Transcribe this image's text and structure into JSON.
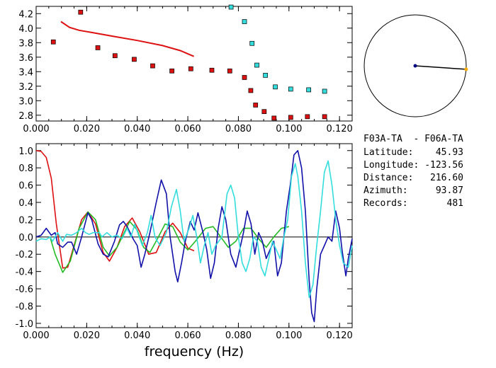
{
  "info": {
    "station_pair": "F03A-TA  - F06A-TA",
    "rows": [
      {
        "label": "Latitude:",
        "value": "45.93"
      },
      {
        "label": "Longitude:",
        "value": "-123.56"
      },
      {
        "label": "Distance:",
        "value": "216.60"
      },
      {
        "label": "Azimuth:",
        "value": "93.87"
      },
      {
        "label": "Records:",
        "value": "481"
      }
    ]
  },
  "colors": {
    "red": "#dd1111",
    "cyan": "#33dddd",
    "blue": "#1111aa",
    "green": "#22bb22",
    "orange": "#ffaa00",
    "navy": "#000080"
  },
  "chart_data": [
    {
      "type": "scatter",
      "xlim": [
        0.0,
        0.125
      ],
      "ylim": [
        2.72,
        4.3
      ],
      "xticks": [
        "0.000",
        "0.020",
        "0.040",
        "0.060",
        "0.080",
        "0.100",
        "0.120"
      ],
      "yticks": [
        "2.8",
        "3.0",
        "3.2",
        "3.4",
        "3.6",
        "3.8",
        "4.0",
        "4.2"
      ],
      "series": [
        {
          "color": "red",
          "kind": "points",
          "points": [
            [
              0.0068,
              3.81
            ],
            [
              0.0176,
              4.22
            ],
            [
              0.0244,
              3.73
            ],
            [
              0.0312,
              3.62
            ],
            [
              0.0388,
              3.57
            ],
            [
              0.0461,
              3.48
            ],
            [
              0.0537,
              3.41
            ],
            [
              0.0612,
              3.44
            ],
            [
              0.0695,
              3.42
            ],
            [
              0.0766,
              3.41
            ],
            [
              0.0824,
              3.32
            ],
            [
              0.0849,
              3.14
            ],
            [
              0.0868,
              2.94
            ],
            [
              0.0902,
              2.85
            ],
            [
              0.0941,
              2.76
            ],
            [
              0.1007,
              2.77
            ],
            [
              0.1073,
              2.78
            ],
            [
              0.1141,
              2.78
            ]
          ]
        },
        {
          "color": "cyan",
          "kind": "points",
          "points": [
            [
              0.0771,
              4.29
            ],
            [
              0.0824,
              4.09
            ],
            [
              0.0854,
              3.79
            ],
            [
              0.0873,
              3.49
            ],
            [
              0.0907,
              3.35
            ],
            [
              0.0946,
              3.19
            ],
            [
              0.1007,
              3.16
            ],
            [
              0.1078,
              3.15
            ],
            [
              0.1141,
              3.13
            ]
          ]
        },
        {
          "color": "red",
          "kind": "line",
          "points": [
            [
              0.0098,
              4.09
            ],
            [
              0.0132,
              4.01
            ],
            [
              0.017,
              3.97
            ],
            [
              0.022,
              3.94
            ],
            [
              0.03,
              3.89
            ],
            [
              0.04,
              3.83
            ],
            [
              0.05,
              3.76
            ],
            [
              0.057,
              3.69
            ],
            [
              0.0624,
              3.61
            ]
          ]
        }
      ]
    },
    {
      "type": "line",
      "xlabel": "frequency (Hz)",
      "xlim": [
        0.0,
        0.125
      ],
      "ylim": [
        -1.05,
        1.08
      ],
      "xticks": [
        "0.000",
        "0.020",
        "0.040",
        "0.060",
        "0.080",
        "0.100",
        "0.120"
      ],
      "yticks": [
        "1.0",
        "0.8",
        "0.6",
        "0.4",
        "0.2",
        "0.0",
        "-0.2",
        "-0.4",
        "-0.6",
        "-0.8",
        "-1.0"
      ],
      "series": [
        {
          "color": "red",
          "points": [
            [
              0.0,
              1.0
            ],
            [
              0.002,
              0.99
            ],
            [
              0.004,
              0.92
            ],
            [
              0.006,
              0.68
            ],
            [
              0.008,
              0.15
            ],
            [
              0.0105,
              -0.36
            ],
            [
              0.0125,
              -0.35
            ],
            [
              0.015,
              -0.1
            ],
            [
              0.018,
              0.2
            ],
            [
              0.0205,
              0.29
            ],
            [
              0.0235,
              0.15
            ],
            [
              0.0265,
              -0.18
            ],
            [
              0.029,
              -0.28
            ],
            [
              0.032,
              -0.12
            ],
            [
              0.035,
              0.12
            ],
            [
              0.038,
              0.22
            ],
            [
              0.041,
              0.06
            ],
            [
              0.0445,
              -0.2
            ],
            [
              0.0475,
              -0.18
            ],
            [
              0.051,
              0.06
            ],
            [
              0.054,
              0.16
            ],
            [
              0.057,
              0.05
            ],
            [
              0.06,
              -0.13
            ],
            [
              0.0625,
              -0.16
            ]
          ]
        },
        {
          "color": "green",
          "points": [
            [
              0.0055,
              0.0
            ],
            [
              0.0075,
              -0.2
            ],
            [
              0.0105,
              -0.41
            ],
            [
              0.0135,
              -0.28
            ],
            [
              0.017,
              0.1
            ],
            [
              0.0205,
              0.29
            ],
            [
              0.0235,
              0.2
            ],
            [
              0.0265,
              -0.12
            ],
            [
              0.029,
              -0.22
            ],
            [
              0.032,
              -0.12
            ],
            [
              0.035,
              0.06
            ],
            [
              0.037,
              0.18
            ],
            [
              0.04,
              0.08
            ],
            [
              0.0425,
              -0.12
            ],
            [
              0.045,
              -0.18
            ],
            [
              0.048,
              -0.02
            ],
            [
              0.051,
              0.15
            ],
            [
              0.054,
              0.12
            ],
            [
              0.057,
              -0.06
            ],
            [
              0.06,
              -0.15
            ],
            [
              0.063,
              -0.05
            ],
            [
              0.067,
              0.1
            ],
            [
              0.07,
              0.12
            ],
            [
              0.073,
              0.0
            ],
            [
              0.076,
              -0.12
            ],
            [
              0.079,
              -0.05
            ],
            [
              0.082,
              0.1
            ],
            [
              0.085,
              0.1
            ],
            [
              0.088,
              -0.02
            ],
            [
              0.091,
              -0.12
            ],
            [
              0.094,
              0.0
            ],
            [
              0.097,
              0.1
            ],
            [
              0.1,
              0.12
            ]
          ]
        },
        {
          "color": "blue",
          "points": [
            [
              0.0,
              0.0
            ],
            [
              0.002,
              0.02
            ],
            [
              0.004,
              0.1
            ],
            [
              0.005,
              0.06
            ],
            [
              0.006,
              0.02
            ],
            [
              0.0075,
              0.05
            ],
            [
              0.0085,
              -0.08
            ],
            [
              0.0105,
              -0.12
            ],
            [
              0.0125,
              -0.06
            ],
            [
              0.014,
              -0.06
            ],
            [
              0.016,
              -0.2
            ],
            [
              0.018,
              0.0
            ],
            [
              0.0205,
              0.28
            ],
            [
              0.022,
              0.2
            ],
            [
              0.0245,
              -0.08
            ],
            [
              0.0265,
              -0.2
            ],
            [
              0.0285,
              -0.23
            ],
            [
              0.031,
              -0.05
            ],
            [
              0.033,
              0.14
            ],
            [
              0.0345,
              0.18
            ],
            [
              0.036,
              0.12
            ],
            [
              0.0385,
              -0.03
            ],
            [
              0.04,
              -0.1
            ],
            [
              0.0415,
              -0.35
            ],
            [
              0.043,
              -0.2
            ],
            [
              0.045,
              0.05
            ],
            [
              0.0475,
              0.4
            ],
            [
              0.0495,
              0.66
            ],
            [
              0.0515,
              0.5
            ],
            [
              0.053,
              0.0
            ],
            [
              0.055,
              -0.4
            ],
            [
              0.056,
              -0.52
            ],
            [
              0.0575,
              -0.3
            ],
            [
              0.059,
              -0.05
            ],
            [
              0.061,
              0.18
            ],
            [
              0.0625,
              0.08
            ],
            [
              0.064,
              0.28
            ],
            [
              0.066,
              0.05
            ],
            [
              0.0675,
              -0.15
            ],
            [
              0.069,
              -0.48
            ],
            [
              0.0705,
              -0.3
            ],
            [
              0.072,
              0.1
            ],
            [
              0.0735,
              0.35
            ],
            [
              0.075,
              0.2
            ],
            [
              0.077,
              -0.2
            ],
            [
              0.079,
              -0.35
            ],
            [
              0.0805,
              -0.15
            ],
            [
              0.082,
              0.05
            ],
            [
              0.0835,
              0.3
            ],
            [
              0.085,
              0.15
            ],
            [
              0.0865,
              -0.2
            ],
            [
              0.088,
              0.05
            ],
            [
              0.0895,
              -0.05
            ],
            [
              0.091,
              -0.25
            ],
            [
              0.0925,
              -0.15
            ],
            [
              0.094,
              -0.05
            ],
            [
              0.0955,
              -0.45
            ],
            [
              0.097,
              -0.3
            ],
            [
              0.099,
              0.3
            ],
            [
              0.1005,
              0.6
            ],
            [
              0.102,
              0.95
            ],
            [
              0.1035,
              1.0
            ],
            [
              0.105,
              0.8
            ],
            [
              0.1065,
              0.3
            ],
            [
              0.108,
              -0.5
            ],
            [
              0.109,
              -0.88
            ],
            [
              0.11,
              -0.98
            ],
            [
              0.111,
              -0.6
            ],
            [
              0.1125,
              -0.2
            ],
            [
              0.114,
              -0.1
            ],
            [
              0.1155,
              0.0
            ],
            [
              0.117,
              -0.05
            ],
            [
              0.1185,
              0.3
            ],
            [
              0.12,
              0.1
            ],
            [
              0.121,
              -0.15
            ],
            [
              0.1225,
              -0.45
            ],
            [
              0.1235,
              -0.25
            ],
            [
              0.125,
              -0.02
            ]
          ]
        },
        {
          "color": "cyan",
          "points": [
            [
              0.0,
              -0.05
            ],
            [
              0.002,
              -0.02
            ],
            [
              0.004,
              -0.03
            ],
            [
              0.0055,
              0.0
            ],
            [
              0.0065,
              -0.05
            ],
            [
              0.0085,
              0.05
            ],
            [
              0.0105,
              -0.05
            ],
            [
              0.012,
              0.03
            ],
            [
              0.014,
              0.02
            ],
            [
              0.016,
              0.05
            ],
            [
              0.018,
              0.1
            ],
            [
              0.0195,
              0.05
            ],
            [
              0.021,
              0.03
            ],
            [
              0.0225,
              0.05
            ],
            [
              0.025,
              0.05
            ],
            [
              0.026,
              0.0
            ],
            [
              0.028,
              0.05
            ],
            [
              0.03,
              0.0
            ],
            [
              0.032,
              0.02
            ],
            [
              0.034,
              -0.02
            ],
            [
              0.036,
              0.1
            ],
            [
              0.0375,
              0.0
            ],
            [
              0.039,
              0.15
            ],
            [
              0.0405,
              0.02
            ],
            [
              0.042,
              -0.1
            ],
            [
              0.044,
              0.05
            ],
            [
              0.0455,
              0.25
            ],
            [
              0.047,
              0.0
            ],
            [
              0.049,
              -0.1
            ],
            [
              0.0515,
              0.05
            ],
            [
              0.0535,
              0.35
            ],
            [
              0.0555,
              0.55
            ],
            [
              0.057,
              0.3
            ],
            [
              0.0585,
              -0.05
            ],
            [
              0.0605,
              0.1
            ],
            [
              0.062,
              0.25
            ],
            [
              0.0635,
              0.0
            ],
            [
              0.065,
              -0.3
            ],
            [
              0.0665,
              -0.1
            ],
            [
              0.068,
              0.05
            ],
            [
              0.0695,
              -0.2
            ],
            [
              0.071,
              -0.1
            ],
            [
              0.0735,
              0.0
            ],
            [
              0.0755,
              0.5
            ],
            [
              0.077,
              0.6
            ],
            [
              0.0785,
              0.45
            ],
            [
              0.08,
              0.0
            ],
            [
              0.0815,
              -0.3
            ],
            [
              0.083,
              -0.4
            ],
            [
              0.0845,
              -0.25
            ],
            [
              0.086,
              0.0
            ],
            [
              0.0875,
              -0.05
            ],
            [
              0.089,
              -0.35
            ],
            [
              0.0905,
              -0.45
            ],
            [
              0.092,
              -0.25
            ],
            [
              0.0935,
              -0.05
            ],
            [
              0.095,
              -0.15
            ],
            [
              0.0965,
              -0.25
            ],
            [
              0.098,
              0.0
            ],
            [
              0.0995,
              0.2
            ],
            [
              0.101,
              0.7
            ],
            [
              0.1025,
              0.85
            ],
            [
              0.1035,
              0.7
            ],
            [
              0.105,
              0.3
            ],
            [
              0.1065,
              -0.3
            ],
            [
              0.108,
              -0.7
            ],
            [
              0.1095,
              -0.55
            ],
            [
              0.111,
              -0.1
            ],
            [
              0.1125,
              0.3
            ],
            [
              0.114,
              0.75
            ],
            [
              0.1155,
              0.88
            ],
            [
              0.117,
              0.6
            ],
            [
              0.1185,
              0.2
            ],
            [
              0.12,
              -0.1
            ],
            [
              0.1215,
              -0.3
            ],
            [
              0.1235,
              -0.35
            ],
            [
              0.125,
              -0.1
            ]
          ]
        }
      ]
    },
    {
      "type": "polar",
      "azimuth_deg": 93.87
    }
  ]
}
